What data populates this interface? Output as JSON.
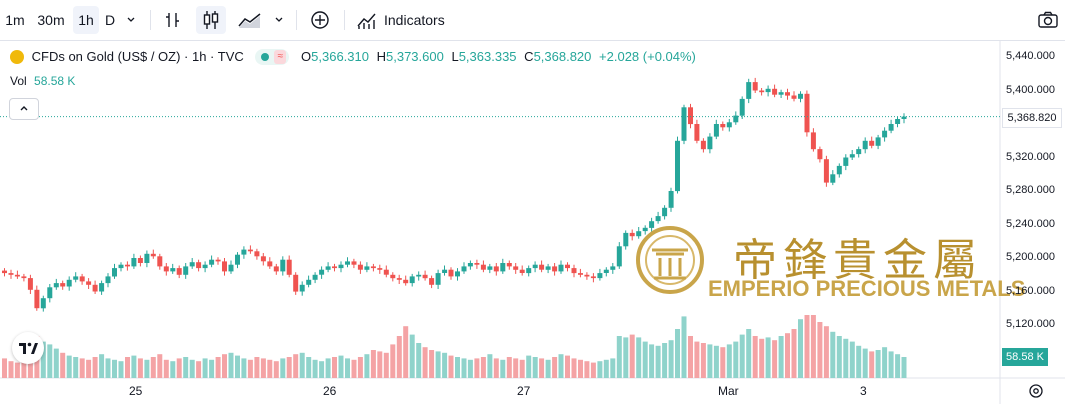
{
  "toolbar": {
    "intervals": [
      "1m",
      "30m",
      "1h",
      "D"
    ],
    "active_interval": "1h",
    "indicators_label": "Indicators"
  },
  "legend": {
    "symbol": "CFDs on Gold (US$ / OZ) · 1h · TVC",
    "open_label": "O",
    "open": "5,366.310",
    "high_label": "H",
    "high": "5,373.600",
    "low_label": "L",
    "low": "5,363.335",
    "close_label": "C",
    "close": "5,368.820",
    "change": "+2.028 (+0.04%)",
    "vol_label": "Vol",
    "vol_value": "58.58 K"
  },
  "price_axis": {
    "labels": [
      "5,440.000",
      "5,400.000",
      "5,320.000",
      "5,280.000",
      "5,240.000",
      "5,200.000",
      "5,160.000",
      "5,120.000"
    ],
    "current_price": "5,368.820",
    "current_volume": "58.58 K"
  },
  "time_axis": {
    "labels": [
      "25",
      "26",
      "27",
      "Mar",
      "3"
    ]
  },
  "watermark": {
    "chinese": "帝鋒貴金屬",
    "english": "EMPERIO PRECIOUS METALS"
  },
  "colors": {
    "up": "#26a69a",
    "down": "#ef5350",
    "up_volume": "#8fd3cb",
    "down_volume": "#f4a3a5",
    "gold": "#c9a54a"
  },
  "chart_data": {
    "type": "candlestick",
    "symbol": "CFDs on Gold (US$ / OZ)",
    "interval": "1h",
    "x_labels": [
      "25",
      "26",
      "27",
      "Mar",
      "3"
    ],
    "ylim": [
      5100,
      5460
    ],
    "y_ticks": [
      5120,
      5160,
      5200,
      5240,
      5280,
      5320,
      5360,
      5400,
      5440
    ],
    "last_price": 5368.82,
    "closes": [
      5182,
      5180,
      5178,
      5176,
      5162,
      5140,
      5152,
      5165,
      5170,
      5166,
      5174,
      5178,
      5172,
      5168,
      5160,
      5170,
      5178,
      5188,
      5192,
      5190,
      5200,
      5194,
      5205,
      5202,
      5190,
      5184,
      5188,
      5180,
      5190,
      5195,
      5188,
      5192,
      5198,
      5196,
      5184,
      5192,
      5204,
      5210,
      5208,
      5202,
      5196,
      5190,
      5184,
      5198,
      5180,
      5160,
      5168,
      5174,
      5180,
      5186,
      5190,
      5188,
      5192,
      5196,
      5192,
      5186,
      5190,
      5188,
      5186,
      5180,
      5176,
      5174,
      5170,
      5178,
      5180,
      5176,
      5168,
      5182,
      5186,
      5178,
      5184,
      5190,
      5194,
      5192,
      5186,
      5190,
      5184,
      5194,
      5190,
      5186,
      5182,
      5188,
      5192,
      5186,
      5190,
      5184,
      5192,
      5188,
      5182,
      5180,
      5178,
      5176,
      5182,
      5186,
      5190,
      5214,
      5230,
      5226,
      5232,
      5236,
      5244,
      5250,
      5260,
      5280,
      5340,
      5380,
      5360,
      5340,
      5330,
      5345,
      5360,
      5356,
      5362,
      5370,
      5390,
      5410,
      5400,
      5398,
      5402,
      5395,
      5398,
      5394,
      5390,
      5396,
      5350,
      5330,
      5318,
      5290,
      5300,
      5310,
      5320,
      5324,
      5330,
      5340,
      5334,
      5344,
      5352,
      5360,
      5366,
      5368.82
    ],
    "volumes": [
      28,
      24,
      22,
      30,
      38,
      60,
      52,
      48,
      42,
      36,
      32,
      30,
      28,
      26,
      30,
      34,
      28,
      26,
      24,
      30,
      32,
      28,
      26,
      30,
      34,
      26,
      24,
      28,
      30,
      26,
      24,
      28,
      26,
      30,
      34,
      36,
      32,
      28,
      26,
      30,
      28,
      26,
      24,
      28,
      30,
      34,
      36,
      30,
      26,
      24,
      28,
      30,
      32,
      28,
      26,
      30,
      34,
      40,
      38,
      36,
      48,
      60,
      74,
      62,
      50,
      44,
      40,
      38,
      36,
      32,
      30,
      28,
      26,
      28,
      30,
      34,
      28,
      26,
      30,
      28,
      26,
      32,
      30,
      28,
      26,
      30,
      34,
      32,
      28,
      26,
      24,
      22,
      24,
      26,
      28,
      60,
      58,
      62,
      58,
      52,
      48,
      46,
      50,
      54,
      70,
      88,
      60,
      52,
      50,
      48,
      46,
      44,
      48,
      52,
      62,
      70,
      60,
      56,
      58,
      54,
      60,
      64,
      70,
      84,
      90,
      90,
      80,
      74,
      66,
      60,
      56,
      52,
      46,
      42,
      38,
      40,
      44,
      38,
      34,
      30
    ]
  }
}
